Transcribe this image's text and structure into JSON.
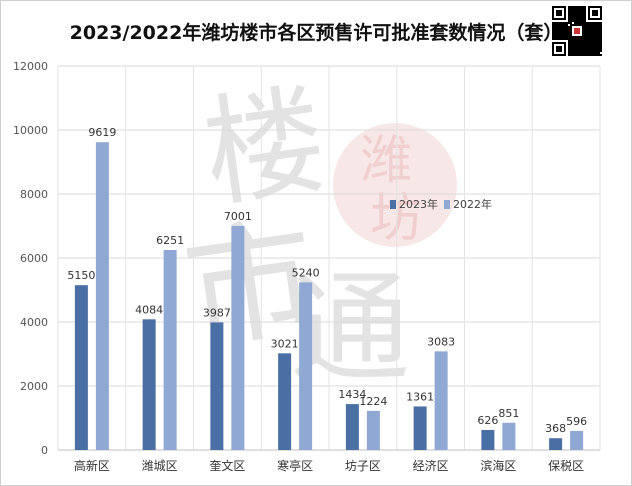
{
  "chart_data": {
    "type": "bar",
    "title": "2023/2022年潍坊楼市各区预售许可批准套数情况（套）",
    "categories": [
      "高新区",
      "潍城区",
      "奎文区",
      "寒亭区",
      "坊子区",
      "经济区",
      "滨海区",
      "保税区"
    ],
    "series": [
      {
        "name": "2023年",
        "color": "#4a6fa5",
        "values": [
          5150,
          4084,
          3987,
          3021,
          1434,
          1361,
          626,
          368
        ]
      },
      {
        "name": "2022年",
        "color": "#8fa8d4",
        "values": [
          9619,
          6251,
          7001,
          5240,
          1224,
          3083,
          851,
          596
        ]
      }
    ],
    "ylim": [
      0,
      12000
    ],
    "yticks": [
      0,
      2000,
      4000,
      6000,
      8000,
      10000,
      12000
    ],
    "grid": true,
    "legend": "upper-right-inside"
  },
  "watermark": {
    "text": [
      "楼",
      "市",
      "通"
    ],
    "seal_text": [
      "潍",
      "坊"
    ],
    "seal_color": "#e8a0a0"
  },
  "qr_icon": "qr-code-icon"
}
